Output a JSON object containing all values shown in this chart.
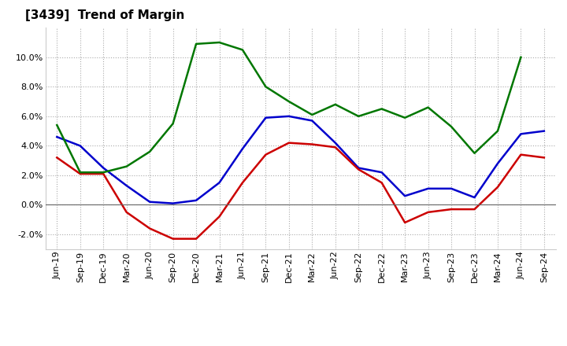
{
  "title": "[3439]  Trend of Margin",
  "x_labels": [
    "Jun-19",
    "Sep-19",
    "Dec-19",
    "Mar-20",
    "Jun-20",
    "Sep-20",
    "Dec-20",
    "Mar-21",
    "Jun-21",
    "Sep-21",
    "Dec-21",
    "Mar-22",
    "Jun-22",
    "Sep-22",
    "Dec-22",
    "Mar-23",
    "Jun-23",
    "Sep-23",
    "Dec-23",
    "Mar-24",
    "Jun-24",
    "Sep-24"
  ],
  "ordinary_income": [
    4.6,
    4.0,
    2.5,
    1.3,
    0.2,
    0.1,
    0.3,
    1.5,
    3.8,
    5.9,
    6.0,
    5.7,
    4.2,
    2.5,
    2.2,
    0.6,
    1.1,
    1.1,
    0.5,
    2.8,
    4.8,
    5.0
  ],
  "net_income": [
    3.2,
    2.1,
    2.1,
    -0.5,
    -1.6,
    -2.3,
    -2.3,
    -0.8,
    1.5,
    3.4,
    4.2,
    4.1,
    3.9,
    2.4,
    1.5,
    -1.2,
    -0.5,
    -0.3,
    -0.3,
    1.2,
    3.4,
    3.2
  ],
  "operating_cashflow": [
    5.4,
    2.2,
    2.2,
    2.6,
    3.6,
    5.5,
    10.9,
    11.0,
    10.5,
    8.0,
    7.0,
    6.1,
    6.8,
    6.0,
    6.5,
    5.9,
    6.6,
    5.3,
    3.5,
    5.0,
    10.0,
    null
  ],
  "ylim": [
    -3.0,
    12.0
  ],
  "yticks": [
    -2.0,
    0.0,
    2.0,
    4.0,
    6.0,
    8.0,
    10.0
  ],
  "line_colors": {
    "ordinary_income": "#0000cc",
    "net_income": "#cc0000",
    "operating_cashflow": "#007700"
  },
  "background_color": "#ffffff",
  "plot_bg_color": "#ffffff",
  "grid_color": "#aaaaaa",
  "title_fontsize": 11,
  "axis_fontsize": 8
}
